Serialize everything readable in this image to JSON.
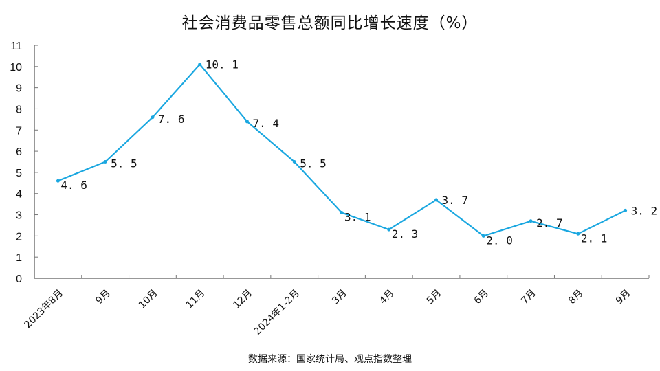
{
  "chart_data": {
    "type": "line",
    "title": "社会消费品零售总额同比增长速度（%）",
    "xlabel": "",
    "ylabel": "",
    "ylim": [
      0,
      11
    ],
    "yticks": [
      0,
      1,
      2,
      3,
      4,
      5,
      6,
      7,
      8,
      9,
      10,
      11
    ],
    "grid": false,
    "legend": null,
    "categories": [
      "2023年8月",
      "9月",
      "10月",
      "11月",
      "12月",
      "2024年1-2月",
      "3月",
      "4月",
      "5月",
      "6月",
      "7月",
      "8月",
      "9月"
    ],
    "series": [
      {
        "name": "社会消费品零售总额同比增长速度",
        "color": "#1aa7e0",
        "values": [
          4.6,
          5.5,
          7.6,
          10.1,
          7.4,
          5.5,
          3.1,
          2.3,
          3.7,
          2.0,
          2.7,
          2.1,
          3.2
        ],
        "labels": [
          "4.6",
          "5.5",
          "7.6",
          "10.1",
          "7.4",
          "5.5",
          "3.1",
          "2.3",
          "3.7",
          "2.0",
          "2.7",
          "2.1",
          "3.2"
        ]
      }
    ],
    "source": "数据来源：国家统计局、观点指数整理"
  },
  "colors": {
    "line": "#1aa7e0",
    "axis": "#777777"
  }
}
